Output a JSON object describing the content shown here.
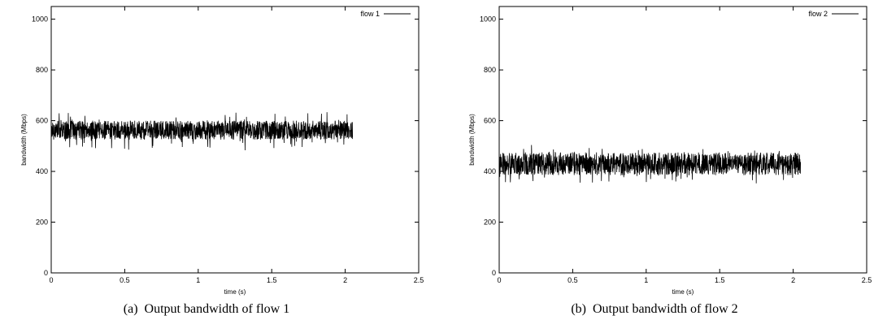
{
  "chart_data": [
    {
      "type": "line",
      "caption": "(a)  Output bandwidth of flow 1",
      "xlabel": "time (s)",
      "ylabel": "bandwidth (Mbps)",
      "xlim": [
        0,
        2.5
      ],
      "ylim": [
        0,
        1050
      ],
      "xticks": [
        0,
        0.5,
        1,
        1.5,
        2,
        2.5
      ],
      "xtick_labels": [
        "0",
        "0.5",
        "1",
        "1.5",
        "2",
        "2.5"
      ],
      "yticks": [
        0,
        200,
        400,
        600,
        800,
        1000
      ],
      "ytick_labels": [
        "0",
        "200",
        "400",
        "600",
        "800",
        "1000"
      ],
      "grid": false,
      "legend_position": "top-right",
      "series": [
        {
          "name": "flow 1",
          "color": "#000000",
          "x_range": [
            0,
            2.05
          ],
          "mean": 560,
          "noise_range": [
            525,
            600
          ],
          "spike_min": 478,
          "spike_max": 635
        }
      ]
    },
    {
      "type": "line",
      "caption": "(b)  Output bandwidth of flow 2",
      "xlabel": "time (s)",
      "ylabel": "bandwidth (Mbps)",
      "xlim": [
        0,
        2.5
      ],
      "ylim": [
        0,
        1050
      ],
      "xticks": [
        0,
        0.5,
        1,
        1.5,
        2,
        2.5
      ],
      "xtick_labels": [
        "0",
        "0.5",
        "1",
        "1.5",
        "2",
        "2.5"
      ],
      "yticks": [
        0,
        200,
        400,
        600,
        800,
        1000
      ],
      "ytick_labels": [
        "0",
        "200",
        "400",
        "600",
        "800",
        "1000"
      ],
      "grid": false,
      "legend_position": "top-right",
      "series": [
        {
          "name": "flow 2",
          "color": "#000000",
          "x_range": [
            0,
            2.05
          ],
          "mean": 430,
          "noise_range": [
            385,
            475
          ],
          "spike_min": 352,
          "spike_max": 505
        }
      ]
    }
  ]
}
